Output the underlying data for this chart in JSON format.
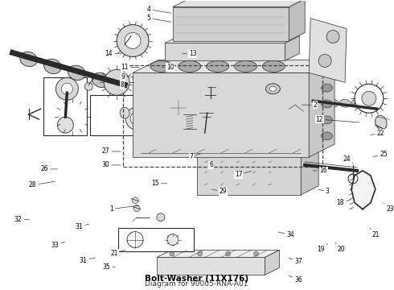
{
  "title": "Bolt-Washer (11X176)",
  "subtitle": "Diagram for 90005-RNA-A01",
  "bg_color": "#ffffff",
  "line_color": "#2a2a2a",
  "label_color": "#000000",
  "box_color": "#000000",
  "fig_width": 4.9,
  "fig_height": 3.6,
  "dpi": 100,
  "title_fontsize": 7.5,
  "subtitle_fontsize": 6.5,
  "label_fontsize": 5.5
}
